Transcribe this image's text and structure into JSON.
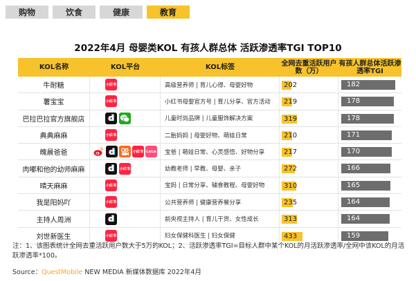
{
  "tabs": [
    "购物",
    "饮食",
    "健康",
    "教育"
  ],
  "active_tab": 3,
  "chart_data": {
    "type": "table",
    "title": "2022年4月 母婴类KOL 有孩人群总体 活跃渗透率TGI TOP10",
    "columns": [
      "KOL名称",
      "KOL平台",
      "KOL标签",
      "全网去重活跃用户数（万）",
      "有孩人群总体活跃渗透率TGI"
    ],
    "rows": [
      {
        "name": "牛耐糖",
        "platforms": [
          "xiaohongshu"
        ],
        "tags": "高级营养师 | 育儿心得、母婴好物",
        "users": 202,
        "tgi": 182
      },
      {
        "name": "薯宝宝",
        "platforms": [
          "xiaohongshu"
        ],
        "tags": "小红书母婴官方号 | 育儿分享、官方活动",
        "users": 219,
        "tgi": 178
      },
      {
        "name": "巴拉巴拉官方旗舰店",
        "platforms": [
          "douyin",
          "wechat"
        ],
        "tags": "儿童时尚品牌 | 儿童服饰解决方案",
        "users": 319,
        "tgi": 178
      },
      {
        "name": "典典麻麻",
        "platforms": [
          "xiaohongshu"
        ],
        "tags": "二胎妈妈 | 母婴好物、萌娃日常",
        "users": 210,
        "tgi": 171
      },
      {
        "name": "魄晨爸爸",
        "platforms": [
          "weibo",
          "douyin",
          "kuaishou",
          "xiaohongshu",
          "meipai"
        ],
        "tags": "宝爸 | 萌娃日常、心灵感悟、好物分享",
        "users": 217,
        "tgi": 170
      },
      {
        "name": "肉嘟和他的幼师麻麻",
        "platforms": [
          "douyin",
          "xiaohongshu"
        ],
        "tags": "幼教老师 | 早教、母婴、亲子",
        "users": 272,
        "tgi": 166
      },
      {
        "name": "晴天麻麻",
        "platforms": [
          "xiaohongshu"
        ],
        "tags": "宝妈 | 日常分享、辅食教程、母婴好物",
        "users": 310,
        "tgi": 165
      },
      {
        "name": "我是阳妈吖",
        "platforms": [
          "xiaohongshu"
        ],
        "tags": "公共营养师 | 健康营养餐分享",
        "users": 235,
        "tgi": 164
      },
      {
        "name": "主持人周洲",
        "platforms": [
          "douyin"
        ],
        "tags": "前央视主持人 | 育儿干货、女性成长",
        "users": 313,
        "tgi": 164
      },
      {
        "name": "刘世新医生",
        "platforms": [
          "xiaohongshu"
        ],
        "tags": "妇女保健科医生 | 妇女保健",
        "users": 433,
        "tgi": 159
      }
    ],
    "users_max": 433,
    "tgi_max": 182
  },
  "platform_labels": {
    "xiaohongshu": "小红书",
    "douyin": "d",
    "kuaishou": "ꟻ",
    "meipai": "LeLe"
  },
  "note": "注：1、该图表统计全网去重活跃用户数大于5万的KOL；2、活跃渗透率TGI=目标人群中某个KOL的月活跃渗透率/全网中该KOL的月活跃渗透率*100。",
  "source_prefix": "Source：",
  "source_brand": "QuestMobile",
  "source_rest": " NEW MEDIA 新媒体数据库 2022年4月",
  "colors": {
    "accent": "#f7c22b",
    "tgi_bar": "#6d6d6d",
    "xiaohongshu": "#ff2442",
    "wechat": "#1aad19"
  }
}
